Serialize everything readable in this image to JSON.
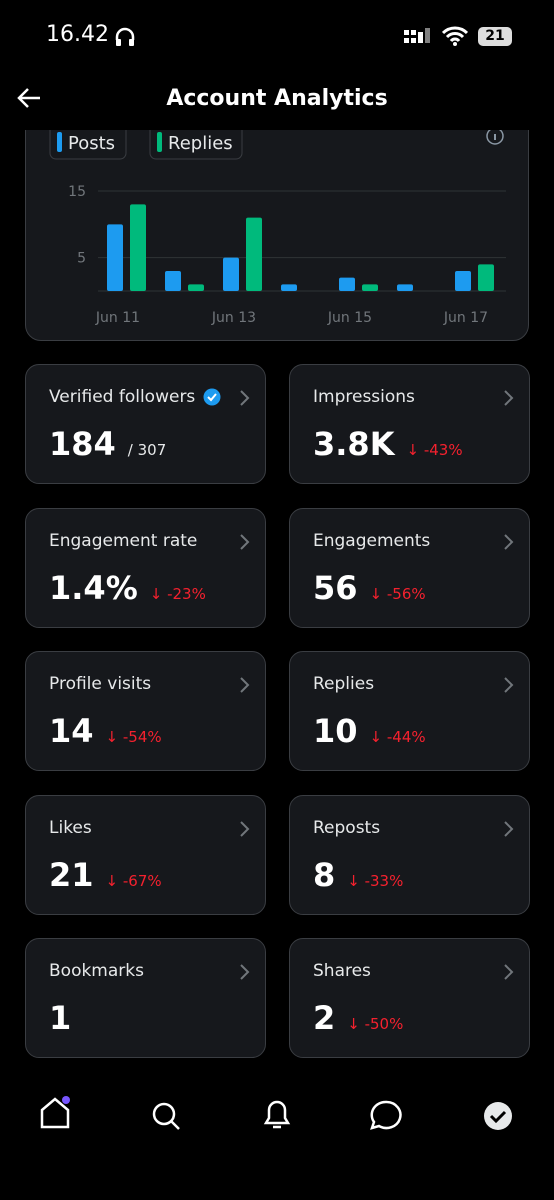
{
  "status": {
    "time": "16.42",
    "battery": "21"
  },
  "header": {
    "title": "Account Analytics"
  },
  "chart": {
    "type": "bar",
    "categories": [
      "Jun 11",
      null,
      "Jun 13",
      null,
      "Jun 15",
      null,
      "Jun 17"
    ],
    "series": [
      {
        "name": "Posts",
        "color": "#1d9bf0",
        "values": [
          10,
          3,
          5,
          1,
          2,
          1,
          3
        ]
      },
      {
        "name": "Replies",
        "color": "#00ba7c",
        "values": [
          13,
          1,
          11,
          0,
          1,
          0,
          4
        ]
      }
    ],
    "ylim": [
      0,
      15
    ],
    "yticks": [
      5,
      15
    ],
    "grid": true
  },
  "cards": [
    {
      "label": "Verified followers",
      "value": "184",
      "sub": "/ 307",
      "verified": true
    },
    {
      "label": "Impressions",
      "value": "3.8K",
      "change": "↓ -43%"
    },
    {
      "label": "Engagement rate",
      "value": "1.4%",
      "change": "↓ -23%"
    },
    {
      "label": "Engagements",
      "value": "56",
      "change": "↓ -56%"
    },
    {
      "label": "Profile visits",
      "value": "14",
      "change": "↓ -54%"
    },
    {
      "label": "Replies",
      "value": "10",
      "change": "↓ -44%"
    },
    {
      "label": "Likes",
      "value": "21",
      "change": "↓ -67%"
    },
    {
      "label": "Reposts",
      "value": "8",
      "change": "↓ -33%"
    },
    {
      "label": "Bookmarks",
      "value": "1"
    },
    {
      "label": "Shares",
      "value": "2",
      "change": "↓ -50%"
    }
  ]
}
